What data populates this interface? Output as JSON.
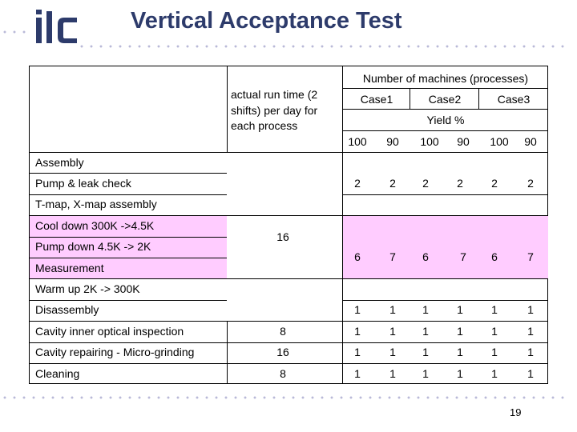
{
  "slide": {
    "title": "Vertical Acceptance Test",
    "page_number": "19",
    "logo_text": "ilc"
  },
  "table": {
    "header": {
      "machines": "Number of machines (processes)",
      "runtime": "actual run time (2 shifts) per day for each process",
      "runtime_lines": [
        "actual run time (2",
        "shifts) per day for",
        "each process"
      ],
      "cases": [
        "Case1",
        "Case2",
        "Case3"
      ],
      "yield": "Yield %",
      "yields": [
        "100",
        "90",
        "100",
        "90",
        "100",
        "90"
      ]
    },
    "rows": [
      {
        "label": "Assembly"
      },
      {
        "label": "Pump & leak check"
      },
      {
        "label": "T-map, X-map assembly"
      },
      {
        "label": "Cool down 300K ->4.5K"
      },
      {
        "label": "Pump down 4.5K -> 2K"
      },
      {
        "label": "Measurement"
      },
      {
        "label": "Warm up 2K -> 300K"
      },
      {
        "label": "Disassembly"
      },
      {
        "label": "Cavity inner optical inspection"
      },
      {
        "label": "Cavity repairing - Micro-grinding"
      },
      {
        "label": "Cleaning"
      }
    ],
    "group_runtime": "16",
    "group_a_machines": [
      "2",
      "2",
      "2",
      "2",
      "2",
      "2"
    ],
    "group_b_machines": [
      "6",
      "7",
      "6",
      "7",
      "6",
      "7"
    ],
    "disassembly_machines": [
      "1",
      "1",
      "1",
      "1",
      "1",
      "1"
    ],
    "inspection": {
      "runtime": "8",
      "machines": [
        "1",
        "1",
        "1",
        "1",
        "1",
        "1"
      ]
    },
    "grinding": {
      "runtime": "16",
      "machines": [
        "1",
        "1",
        "1",
        "1",
        "1",
        "1"
      ]
    },
    "cleaning": {
      "runtime": "8",
      "machines": [
        "1",
        "1",
        "1",
        "1",
        "1",
        "1"
      ]
    }
  }
}
